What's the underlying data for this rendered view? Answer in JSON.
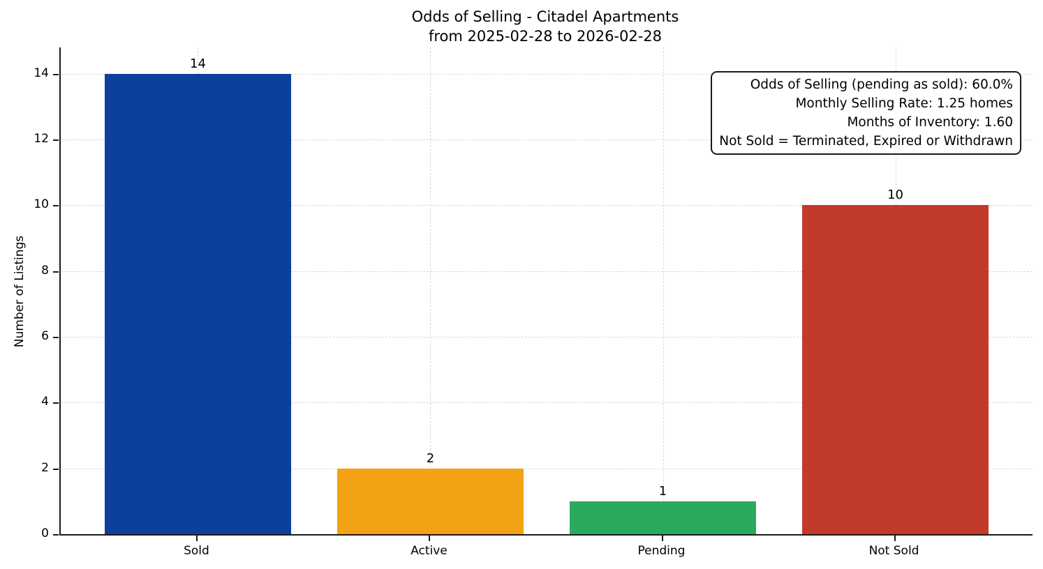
{
  "chart_data": {
    "type": "bar",
    "title": "Odds of Selling - Citadel Apartments",
    "subtitle": "from 2025-02-28 to 2026-02-28",
    "categories": [
      "Sold",
      "Active",
      "Pending",
      "Not Sold"
    ],
    "values": [
      14,
      2,
      1,
      10
    ],
    "value_labels": [
      "14",
      "2",
      "1",
      "10"
    ],
    "bar_colors": [
      "#0d3f9c",
      "#f2a214",
      "#2baa5e",
      "#c23a2c"
    ],
    "xlabel": "",
    "ylabel": "Number of Listings",
    "yticks": [
      0,
      2,
      4,
      6,
      8,
      10,
      12,
      14
    ],
    "ylim": [
      0,
      14.8
    ],
    "xlim": [
      -0.59,
      3.59
    ],
    "bar_width": 0.8,
    "grid": "dashed, both axes",
    "legend_position": "none",
    "annotation": {
      "position": "top-right",
      "lines": [
        "Odds of Selling (pending as sold): 60.0%",
        "Monthly Selling Rate: 1.25 homes",
        "Months of Inventory: 1.60",
        "Not Sold = Terminated, Expired or Withdrawn"
      ]
    },
    "colors": {
      "background": "#ffffff",
      "spine": "#1a1a1a",
      "grid": "#d9d9d9",
      "text": "#000000"
    }
  }
}
